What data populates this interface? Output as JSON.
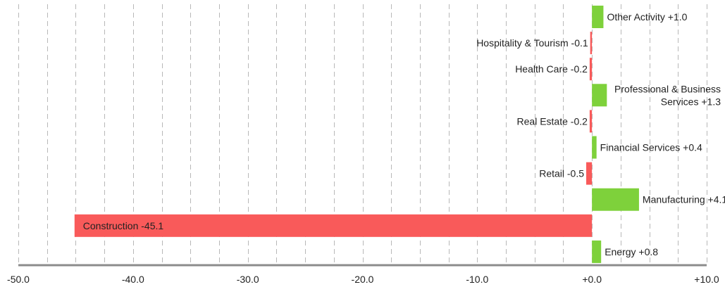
{
  "chart_data": {
    "type": "bar",
    "orientation": "horizontal",
    "title": "",
    "xlabel": "",
    "ylabel": "",
    "xlim": [
      -50,
      10
    ],
    "grid": true,
    "legend": "none",
    "categories": [
      "Other Activity",
      "Hospitality & Tourism",
      "Health Care",
      "Professional & Business Services",
      "Real Estate",
      "Financial Services",
      "Retail",
      "Manufacturing",
      "Construction",
      "Energy"
    ],
    "values": [
      1.0,
      -0.1,
      -0.2,
      1.3,
      -0.2,
      0.4,
      -0.5,
      4.1,
      -45.1,
      0.8
    ],
    "data_labels": [
      [
        "Other Activity +1.0"
      ],
      [
        "Hospitality & Tourism -0.1"
      ],
      [
        "Health Care -0.2"
      ],
      [
        "Professional & Business",
        "Services +1.3"
      ],
      [
        "Real Estate -0.2"
      ],
      [
        "Financial Services +0.4"
      ],
      [
        "Retail -0.5"
      ],
      [
        "Manufacturing +4.1"
      ],
      [
        "Construction -45.1"
      ],
      [
        "Energy +0.8"
      ]
    ],
    "x_ticks": [
      -50,
      -40,
      -30,
      -20,
      -10,
      0,
      10
    ],
    "x_tick_labels": [
      "-50.0",
      "-40.0",
      "-30.0",
      "-20.0",
      "-10.0",
      "+0.0",
      "+10.0"
    ],
    "grid_step": 2.5,
    "colors": {
      "positive": "#7ed13b",
      "negative": "#f95a5a",
      "grid": "#b8b8b8",
      "axis": "#8c8c8c"
    }
  }
}
